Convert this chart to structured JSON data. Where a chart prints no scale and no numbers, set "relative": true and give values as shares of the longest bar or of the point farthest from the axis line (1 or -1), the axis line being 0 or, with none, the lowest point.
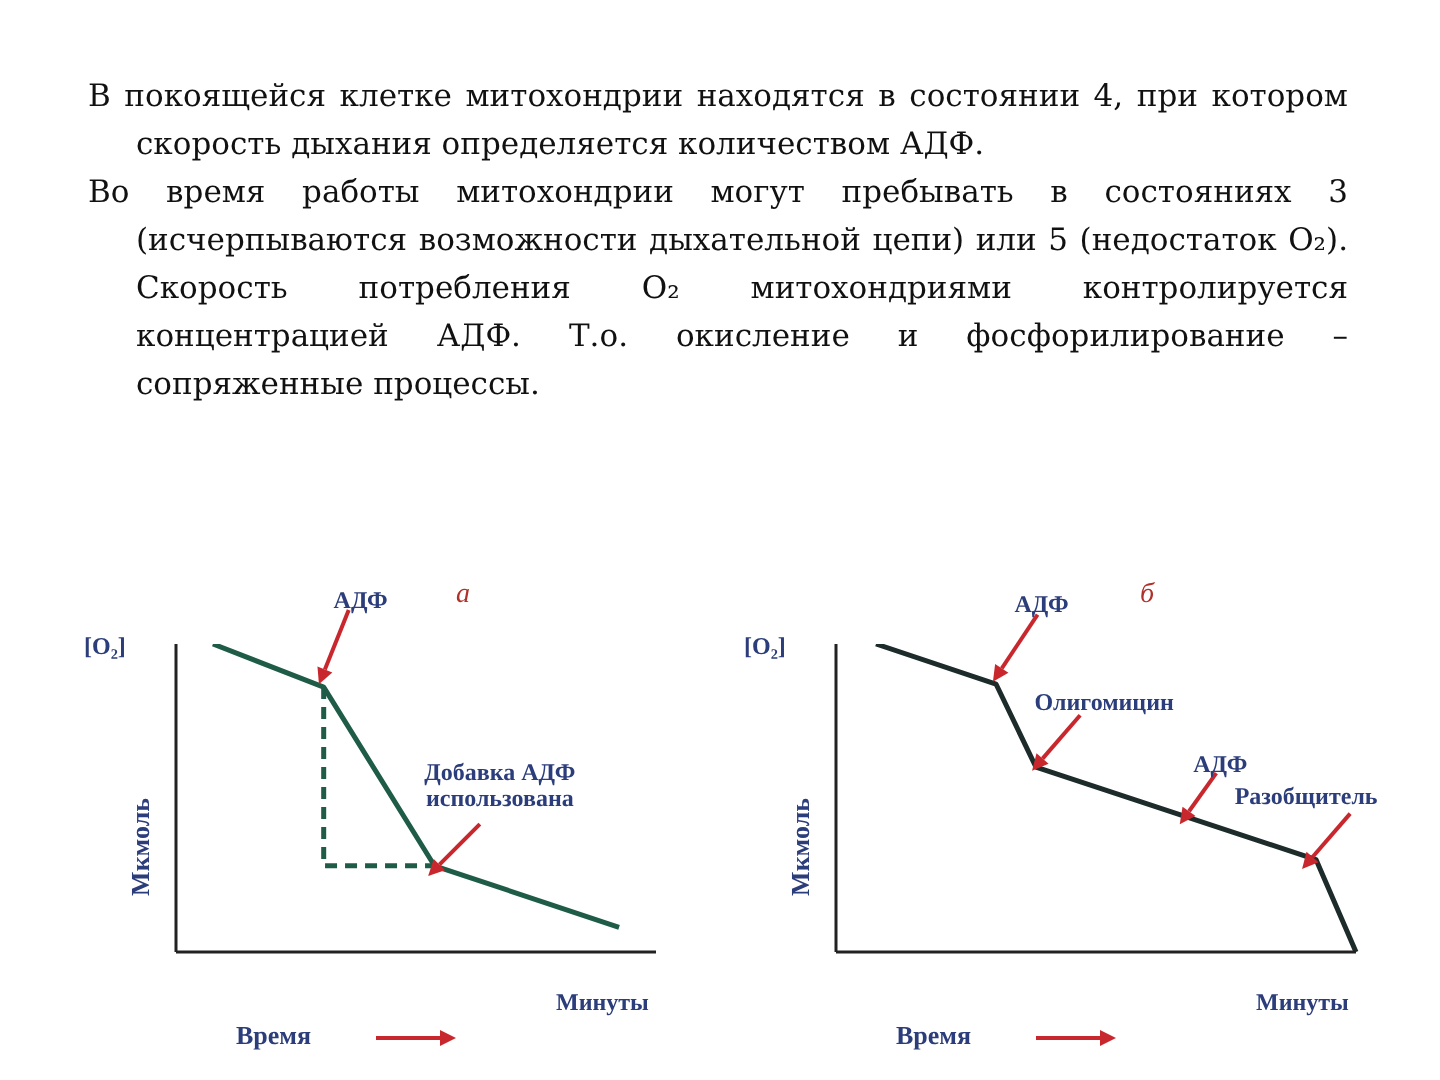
{
  "chart_data": [
    {
      "type": "other",
      "annotations": [
        "В покоящейся клетке митохондрии находятся в состоянии 4, при котором скорость дыхания определяется количеством АДФ.",
        "Во время работы митохондрии могут пребывать в состояниях 3 (исчерпываются возможности дыхательной цепи) или 5 (недостаток O₂). Скорость потребления O₂ митохондриями контролируется концентрацией АДФ. Т.о. окисление и фосфорилирование – сопряженные процессы."
      ]
    },
    {
      "type": "line",
      "title": "а",
      "relative": true,
      "ylabel": "Мкмоль",
      "xlabel": "Время",
      "line_style": "solid",
      "categories": [
        null,
        null,
        null,
        null,
        null,
        null,
        null,
        null,
        null,
        null,
        null,
        null,
        null,
        null
      ],
      "series": [
        {
          "color": "#1f5c48",
          "values": [
            null,
            1,
            null,
            null,
            0.86,
            null,
            null,
            0.28,
            null,
            null,
            null,
            null,
            0.08,
            null
          ]
        },
        {
          "type": "step",
          "color": "#1f5c48",
          "values": [
            null,
            null,
            null,
            null,
            0.86,
            null,
            null,
            0.28,
            null,
            null,
            null,
            null,
            null,
            null
          ],
          "line_style": "dashed"
        }
      ],
      "annotations": [
        "[O₂]",
        "Минуты",
        "АДФ",
        "Добавка АДФ использована"
      ]
    },
    {
      "type": "line",
      "title": "б",
      "relative": true,
      "ylabel": "Мкмоль",
      "xlabel": "Время",
      "line_style": "solid",
      "categories": [
        null,
        null,
        null,
        null,
        null,
        null,
        null,
        null,
        null,
        null,
        null,
        null,
        null,
        null
      ],
      "series": [
        {
          "color": "#1d2b2b",
          "values": [
            null,
            1,
            null,
            null,
            0.87,
            0.6,
            null,
            null,
            null,
            null,
            null,
            null,
            0.3,
            0
          ]
        }
      ],
      "annotations": [
        "[O₂]",
        "Минуты",
        "АДФ",
        "Олигомицин",
        "АДФ",
        "Разобщитель"
      ]
    }
  ]
}
